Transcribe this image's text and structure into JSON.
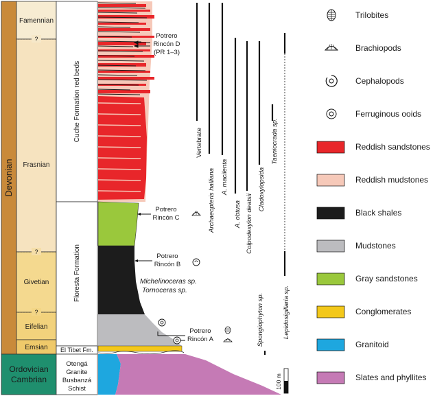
{
  "eras": {
    "devonian": "Devonian",
    "ordovician": "Ordovician",
    "cambrian": "Cambrian",
    "colors": {
      "devonian": "#c98a3a",
      "ordovician": "#1f8f6e"
    }
  },
  "stages": {
    "famennian": "Famennian",
    "frasnian": "Frasnian",
    "givetian": "Givetian",
    "eifelian": "Eifelian",
    "emsian": "Emsian",
    "question": "?",
    "colors": {
      "famennian": "#f7ecd2",
      "frasnian": "#f6e3bf",
      "givetian": "#f4d98f",
      "eifelian": "#f2d27c",
      "emsian": "#efc96a"
    }
  },
  "formations": {
    "cuche": "Cuche Formation red beds",
    "floresta": "Floresta Formation",
    "tibet": "El Tibet Fm.",
    "basement": [
      "Otengá",
      "Granite",
      "Busbanzá",
      "Schist"
    ]
  },
  "localities": {
    "d": {
      "name": "Potrero",
      "name2": "Rincón D",
      "note": "(PR 1–3)"
    },
    "c": {
      "name": "Potrero",
      "name2": "Rincón C"
    },
    "b": {
      "name": "Potrero",
      "name2": "Rincón B"
    },
    "a": {
      "name": "Potrero",
      "name2": "Rincón A"
    }
  },
  "fauna": {
    "michelinoceras": "Michelinoceras sp.",
    "tornoceras": "Tornoceras sp."
  },
  "taxa": [
    {
      "name": "Vertebrate",
      "italic": false
    },
    {
      "name": "Archaeopteris halliana",
      "italic": true
    },
    {
      "name": "A. macilenta",
      "italic": true
    },
    {
      "name": "A. obtusa",
      "italic": true
    },
    {
      "name": "Colpodexylon deatsii",
      "italic": true
    },
    {
      "name": "Cladoxylopsida",
      "italic": true
    },
    {
      "name": "Taeniocrada sp.",
      "italic": true
    },
    {
      "name": "Spongiophyton sp.",
      "italic": true
    },
    {
      "name": "Lepidosigillaria sp.",
      "italic": true
    }
  ],
  "scale": {
    "label": "100 m"
  },
  "legend": {
    "items": [
      {
        "label": "Trilobites",
        "icon": "trilobite-icon"
      },
      {
        "label": "Brachiopods",
        "icon": "brachiopod-icon"
      },
      {
        "label": "Cephalopods",
        "icon": "cephalopod-icon"
      },
      {
        "label": "Ferruginous ooids",
        "icon": "ooid-icon"
      },
      {
        "label": "Reddish sandstones",
        "color": "#e8262a"
      },
      {
        "label": "Reddish mudstones",
        "color": "#f6c9b9"
      },
      {
        "label": "Black shales",
        "color": "#1c1c1c"
      },
      {
        "label": "Mudstones",
        "color": "#bcbcbf"
      },
      {
        "label": "Gray sandstones",
        "color": "#9ac83c"
      },
      {
        "label": "Conglomerates",
        "color": "#f3c81a"
      },
      {
        "label": "Granitoid",
        "color": "#1ea7df"
      },
      {
        "label": "Slates and phyllites",
        "color": "#c57ab5"
      }
    ]
  }
}
